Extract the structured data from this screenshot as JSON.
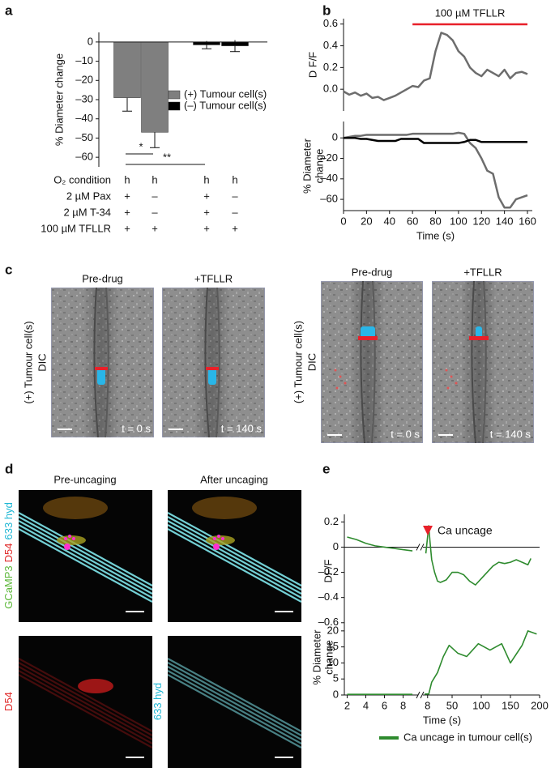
{
  "panel_labels": [
    "a",
    "b",
    "c",
    "d",
    "e"
  ],
  "chart_data": [
    {
      "type": "bar",
      "ylabel": "% Diameter change",
      "categories": [
        null,
        null,
        null,
        null
      ],
      "ylim": [
        -65,
        5
      ],
      "yticks": [
        0,
        {
          "value": -10,
          "label": "–10"
        },
        {
          "value": -20,
          "label": "–20"
        },
        {
          "value": -30,
          "label": "–30"
        },
        {
          "value": -40,
          "label": "–40"
        },
        {
          "value": -50,
          "label": "–50"
        },
        {
          "value": -60,
          "label": "–60"
        }
      ],
      "series": [
        {
          "name": "(+) Tumour cell(s)",
          "color": "#7f7f7f",
          "values": [
            -29,
            -47,
            null,
            null
          ],
          "errors": [
            7,
            8,
            null,
            null
          ]
        },
        {
          "name": "(–) Tumour cell(s)",
          "color": "#000000",
          "values": [
            null,
            null,
            -1.5,
            -2
          ],
          "errors": [
            null,
            null,
            2,
            3
          ]
        }
      ],
      "significance": [
        {
          "label": "*",
          "from": 0,
          "to": 1
        },
        {
          "label": "**",
          "from": 0,
          "to": 2
        }
      ],
      "conditions": [
        {
          "label": "O₂ condition",
          "values": [
            "h",
            "h",
            "h",
            "h"
          ]
        },
        {
          "label": "2 µM Pax",
          "values": [
            "+",
            "–",
            "+",
            "–"
          ]
        },
        {
          "label": "2 µM T-34",
          "values": [
            "+",
            "–",
            "+",
            "–"
          ]
        },
        {
          "label": "100 µM TFLLR",
          "values": [
            "+",
            "+",
            "+",
            "+"
          ]
        }
      ]
    },
    {
      "type": "line",
      "ylabel": "D F/F",
      "xlim": [
        0,
        160
      ],
      "ylim": [
        -0.2,
        0.65
      ],
      "yticks": [
        {
          "value": 0,
          "label": "0.0"
        },
        0.2,
        0.4,
        0.6
      ],
      "annotation": {
        "text": "100 µM TFLLR",
        "x": [
          60,
          160
        ],
        "color": "#e8202a"
      },
      "x": [
        0,
        5,
        10,
        15,
        20,
        25,
        30,
        35,
        40,
        45,
        50,
        55,
        60,
        65,
        70,
        75,
        80,
        85,
        90,
        95,
        100,
        105,
        110,
        115,
        120,
        125,
        130,
        135,
        140,
        145,
        150,
        155,
        160
      ],
      "series": [
        {
          "color": "#6d6d6d",
          "values": [
            -0.02,
            -0.05,
            -0.03,
            -0.06,
            -0.04,
            -0.08,
            -0.07,
            -0.1,
            -0.08,
            -0.06,
            -0.03,
            0.0,
            0.03,
            0.02,
            0.08,
            0.1,
            0.35,
            0.52,
            0.5,
            0.45,
            0.35,
            0.3,
            0.2,
            0.15,
            0.12,
            0.18,
            0.15,
            0.12,
            0.18,
            0.1,
            0.15,
            0.16,
            0.14
          ]
        }
      ]
    },
    {
      "type": "line",
      "ylabel_lines": [
        "% Diameter",
        "change"
      ],
      "xlabel": "Time (s)",
      "xlim": [
        0,
        160
      ],
      "ylim": [
        -71,
        16
      ],
      "xticks": [
        0,
        20,
        40,
        60,
        80,
        100,
        120,
        140,
        160
      ],
      "yticks": [
        0,
        {
          "value": -20,
          "label": "–20"
        },
        {
          "value": -40,
          "label": "–40"
        },
        {
          "value": -60,
          "label": "–60"
        }
      ],
      "x": [
        0,
        5,
        10,
        15,
        20,
        25,
        30,
        35,
        40,
        45,
        50,
        55,
        60,
        65,
        70,
        75,
        80,
        85,
        90,
        95,
        100,
        105,
        110,
        115,
        120,
        125,
        130,
        135,
        140,
        145,
        150,
        155,
        160
      ],
      "series": [
        {
          "color": "#6d6d6d",
          "values": [
            0,
            1,
            2,
            2,
            3,
            3,
            3,
            3,
            3,
            3,
            3,
            3,
            4,
            4,
            4,
            4,
            4,
            4,
            4,
            4,
            5,
            4,
            -5,
            -10,
            -20,
            -32,
            -35,
            -58,
            -68,
            -68,
            -60,
            -58,
            -56
          ]
        },
        {
          "color": "#000000",
          "values": [
            0,
            0,
            0,
            -1,
            -1,
            -2,
            -3,
            -3,
            -3,
            -3,
            -1,
            -1,
            -1,
            -1,
            -5,
            -5,
            -5,
            -5,
            -5,
            -5,
            -5,
            -4,
            -2,
            -2,
            -4,
            -4,
            -4,
            -4,
            -4,
            -4,
            -4,
            -4,
            -4
          ]
        }
      ]
    },
    {
      "type": "line",
      "ylabel": "DF/F",
      "ylim": [
        -0.64,
        0.26
      ],
      "yticks": [
        {
          "value": -0.6,
          "label": "–0.6"
        },
        {
          "value": -0.4,
          "label": "–0.4"
        },
        {
          "value": -0.2,
          "label": "–0.2"
        },
        0,
        0.2
      ],
      "x_segments": [
        {
          "xlim": [
            1.7,
            9.6
          ]
        },
        {
          "xlim": [
            0,
            200
          ]
        }
      ],
      "annotation": {
        "text": "Ca uncage",
        "color": "#e8202a"
      },
      "series": [
        {
          "color": "#2e8b2e",
          "segments": [
            {
              "x": [
                2,
                3,
                4,
                5,
                6,
                7,
                8,
                9
              ],
              "values": [
                0.08,
                0.06,
                0.03,
                0.01,
                0,
                -0.01,
                -0.02,
                -0.03
              ]
            },
            {
              "x": [
                5,
                10,
                12,
                15,
                20,
                25,
                30,
                40,
                50,
                60,
                70,
                80,
                90,
                100,
                110,
                120,
                130,
                140,
                150,
                160,
                170,
                180,
                185
              ],
              "values": [
                -0.05,
                0.17,
                0.05,
                -0.1,
                -0.2,
                -0.27,
                -0.28,
                -0.26,
                -0.2,
                -0.2,
                -0.22,
                -0.27,
                -0.3,
                -0.25,
                -0.2,
                -0.15,
                -0.12,
                -0.13,
                -0.12,
                -0.1,
                -0.12,
                -0.14,
                -0.09
              ]
            }
          ]
        }
      ]
    },
    {
      "type": "line",
      "ylabel_lines": [
        "% Diameter",
        "change"
      ],
      "xlabel": "Time (s)",
      "ylim": [
        0,
        23.5
      ],
      "yticks": [
        0,
        5,
        10,
        15,
        20
      ],
      "x_segments": [
        {
          "xlim": [
            1.7,
            9.6
          ],
          "xticks": [
            2,
            4,
            6,
            8
          ]
        },
        {
          "xlim": [
            0,
            200
          ],
          "xticks": [
            8,
            50,
            100,
            150,
            200
          ]
        }
      ],
      "series": [
        {
          "name": "Ca uncage in tumour cell(s)",
          "color": "#2e8b2e",
          "segments": [
            {
              "x": [
                2,
                4,
                6,
                8,
                9
              ],
              "values": [
                0.2,
                0.2,
                0.2,
                0.2,
                0.2
              ]
            },
            {
              "x": [
                3,
                10,
                15,
                25,
                35,
                45,
                60,
                75,
                95,
                115,
                135,
                150,
                170,
                180,
                195
              ],
              "values": [
                0.3,
                0.3,
                4,
                7,
                12,
                15.5,
                13,
                12,
                16,
                14,
                16,
                10,
                15.5,
                20,
                19
              ]
            }
          ]
        }
      ]
    }
  ],
  "panel_c": {
    "groups": [
      {
        "side_label": [
          "(+) Tumour cell(s)",
          "DIC"
        ],
        "images": [
          {
            "title": "Pre-drug",
            "time": "t = 0 s"
          },
          {
            "title": "+TFLLR",
            "time": "t = 140 s"
          }
        ]
      },
      {
        "side_label": [
          "(+) Tumour cell(s)",
          "DIC"
        ],
        "images": [
          {
            "title": "Pre-drug",
            "time": "t = 0 s"
          },
          {
            "title": "+TFLLR",
            "time": "t = 140 s"
          }
        ]
      }
    ]
  },
  "panel_d": {
    "columns": [
      "Pre-uncaging",
      "After uncaging"
    ],
    "side_labels": [
      [
        {
          "text": "GCaMP3",
          "color": "#5db83a"
        },
        {
          "text": "D54",
          "color": "#e02828"
        },
        {
          "text": "633 hyd",
          "color": "#1fb7d4"
        }
      ],
      [
        {
          "text": "D54",
          "color": "#e02828"
        }
      ],
      [
        {
          "text": "633 hyd",
          "color": "#1fb7d4"
        }
      ]
    ]
  }
}
